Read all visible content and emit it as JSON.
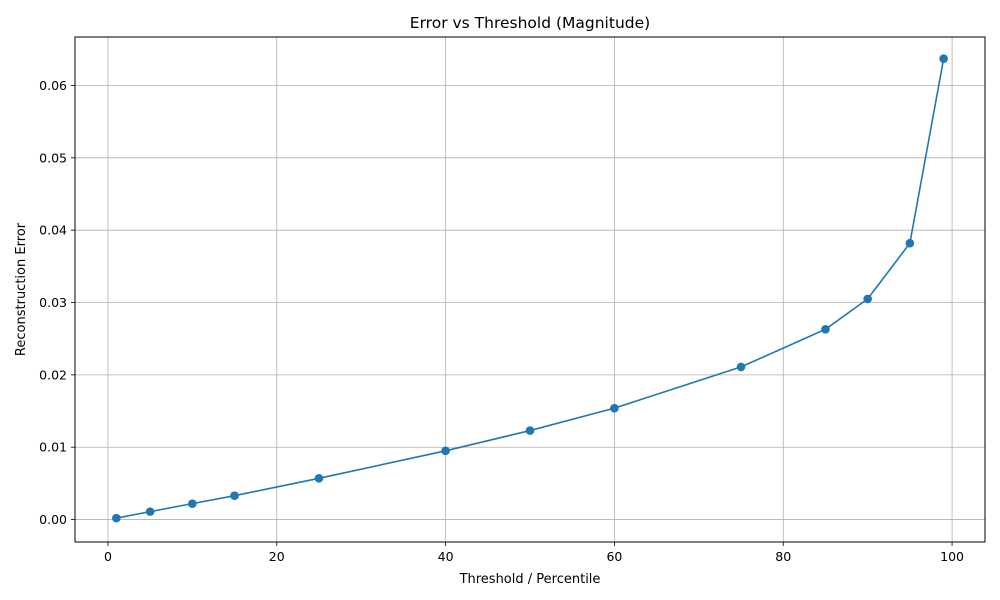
{
  "chart_data": {
    "type": "line",
    "title": "Error vs Threshold (Magnitude)",
    "xlabel": "Threshold / Percentile",
    "ylabel": "Reconstruction Error",
    "xlim": [
      -3.9,
      103.9
    ],
    "ylim": [
      -0.0031,
      0.0667
    ],
    "xticks": [
      0,
      20,
      40,
      60,
      80,
      100
    ],
    "yticks": [
      0.0,
      0.01,
      0.02,
      0.03,
      0.04,
      0.05,
      0.06
    ],
    "xtick_labels": [
      "0",
      "20",
      "40",
      "60",
      "80",
      "100"
    ],
    "ytick_labels": [
      "0.00",
      "0.01",
      "0.02",
      "0.03",
      "0.04",
      "0.05",
      "0.06"
    ],
    "grid": true,
    "series": [
      {
        "color": "#1f77b4",
        "marker": "circle",
        "x": [
          1,
          5,
          10,
          15,
          25,
          40,
          50,
          60,
          75,
          85,
          90,
          95,
          99
        ],
        "y": [
          0.0002,
          0.0011,
          0.0022,
          0.0033,
          0.0057,
          0.0095,
          0.0123,
          0.0154,
          0.0211,
          0.0263,
          0.0305,
          0.0382,
          0.0637
        ]
      }
    ]
  }
}
